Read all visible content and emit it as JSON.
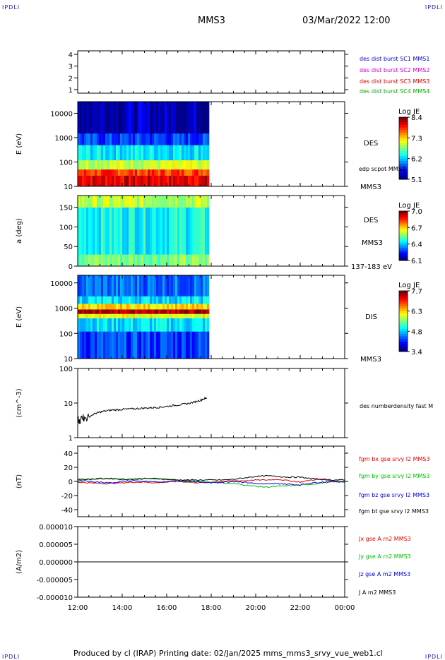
{
  "header": {
    "corner_logo": "IPDLI",
    "spacecraft": "MMS3",
    "datetime": "03/Mar/2022 12:00"
  },
  "footer": {
    "text": "Produced by cl (IRAP)   Printing date: 02/Jan/2025   mms_mms3_srvy_vue_web1.cl"
  },
  "colors": {
    "c1": "#0000cc",
    "c2": "#cc00cc",
    "c3": "#cc0000",
    "c4": "#00aa00",
    "bx": "#dd0000",
    "by": "#00bb00",
    "bz": "#0000dd",
    "bt": "#000000"
  },
  "chart_data": [
    {
      "type": "line",
      "panel": "burst-availability",
      "ylabel": "",
      "yticks": [
        "1",
        "2",
        "3",
        "4"
      ],
      "ylim": [
        0.7,
        4.3
      ],
      "legend": [
        "des dist burst SC1 MMS1",
        "des dist burst SC2 MMS2",
        "des dist burst SC3 MMS3",
        "des dist burst SC4 MMS4"
      ],
      "series": []
    },
    {
      "type": "heatmap",
      "panel": "des-energy",
      "ylabel": "E (eV)",
      "yscale": "log",
      "yticks": [
        "10",
        "100",
        "1000",
        "10000"
      ],
      "ylim": [
        10,
        30000
      ],
      "data_end_time": "17:50",
      "labels": [
        "DES",
        "edp scpot MMS3",
        "MMS3"
      ],
      "colorbar": {
        "title": "Log JE",
        "ticks": [
          "8.4",
          "7.3",
          "6.2",
          "5.1"
        ],
        "range": [
          5.1,
          8.4
        ]
      },
      "bands": [
        {
          "from": 10,
          "to": 28,
          "level": 8.1
        },
        {
          "from": 28,
          "to": 50,
          "level": 7.8
        },
        {
          "from": 50,
          "to": 120,
          "level": 7.0
        },
        {
          "from": 120,
          "to": 500,
          "level": 6.3
        },
        {
          "from": 500,
          "to": 1500,
          "level": 5.7
        },
        {
          "from": 1500,
          "to": 30000,
          "level": 5.3
        }
      ]
    },
    {
      "type": "heatmap",
      "panel": "des-pitch-angle",
      "ylabel": "a (deg)",
      "yticks": [
        "0",
        "50",
        "100",
        "150"
      ],
      "ylim": [
        0,
        180
      ],
      "data_end_time": "17:50",
      "labels": [
        "DES",
        "MMS3",
        "137-183 eV"
      ],
      "colorbar": {
        "title": "Log JE",
        "ticks": [
          "7.0",
          "6.7",
          "6.4",
          "6.1"
        ],
        "range": [
          6.1,
          7.0
        ]
      },
      "bands": [
        {
          "from": 0,
          "to": 30,
          "level": 6.55
        },
        {
          "from": 30,
          "to": 150,
          "level": 6.45
        },
        {
          "from": 150,
          "to": 180,
          "level": 6.6
        }
      ]
    },
    {
      "type": "heatmap",
      "panel": "dis-energy",
      "ylabel": "E (eV)",
      "yscale": "log",
      "yticks": [
        "10",
        "100",
        "1000",
        "10000"
      ],
      "ylim": [
        10,
        20000
      ],
      "data_end_time": "17:50",
      "labels": [
        "DIS",
        "MMS3"
      ],
      "colorbar": {
        "title": "Log JE",
        "ticks": [
          "7.7",
          "6.3",
          "4.8",
          "3.4"
        ],
        "range": [
          3.4,
          7.7
        ]
      },
      "bands": [
        {
          "from": 10,
          "to": 120,
          "level": 4.2
        },
        {
          "from": 120,
          "to": 400,
          "level": 4.9
        },
        {
          "from": 400,
          "to": 600,
          "level": 6.0
        },
        {
          "from": 600,
          "to": 900,
          "level": 7.5
        },
        {
          "from": 900,
          "to": 1500,
          "level": 6.2
        },
        {
          "from": 1500,
          "to": 3000,
          "level": 4.9
        },
        {
          "from": 3000,
          "to": 20000,
          "level": 4.4
        }
      ]
    },
    {
      "type": "line",
      "panel": "density",
      "ylabel": "(cm^-3)",
      "yscale": "log",
      "yticks": [
        "1",
        "10",
        "100"
      ],
      "ylim": [
        1,
        100
      ],
      "legend": [
        "des numberdensity fast M"
      ],
      "series": [
        {
          "name": "des numberdensity fast M",
          "x": [
            12.0,
            12.1,
            12.2,
            12.3,
            12.5,
            12.8,
            13.0,
            13.3,
            13.6,
            13.9,
            14.2,
            14.5,
            14.8,
            15.1,
            15.4,
            15.7,
            16.0,
            16.3,
            16.6,
            16.9,
            17.2,
            17.5,
            17.7,
            17.8
          ],
          "y": [
            3.5,
            2.5,
            4.5,
            3.5,
            4.0,
            5.0,
            5.5,
            6.0,
            6.3,
            6.5,
            6.7,
            6.8,
            7.0,
            7.2,
            7.4,
            7.6,
            8.0,
            8.5,
            9.0,
            9.5,
            10.5,
            12.0,
            13.5,
            14.0
          ]
        }
      ]
    },
    {
      "type": "line",
      "panel": "magnetic-field",
      "ylabel": "(nT)",
      "yticks": [
        "-40",
        "-20",
        "0",
        "20",
        "40"
      ],
      "ylim": [
        -50,
        50
      ],
      "legend": [
        "fgm bx gse srvy l2 MMS3",
        "fgm by gse srvy l2 MMS3",
        "fgm bz gse srvy l2 MMS3",
        "fgm bt gse srvy l2 MMS3"
      ],
      "series": [
        {
          "name": "fgm bx gse srvy l2 MMS3",
          "x": [
            12,
            12.5,
            13,
            13.5,
            14,
            14.5,
            15,
            15.5,
            16,
            16.5,
            17,
            17.5,
            18,
            18.5,
            19,
            19.5,
            20,
            20.5,
            21,
            21.5,
            22,
            22.5,
            23,
            23.5,
            24
          ],
          "y": [
            -1,
            -2,
            -3,
            -3,
            -2,
            -1,
            -1,
            -2,
            -1,
            0,
            -1,
            -2,
            -1,
            0,
            1,
            1,
            2,
            2,
            3,
            1,
            -1,
            2,
            3,
            1,
            0
          ]
        },
        {
          "name": "fgm by gse srvy l2 MMS3",
          "x": [
            12,
            12.5,
            13,
            13.5,
            14,
            14.5,
            15,
            15.5,
            16,
            16.5,
            17,
            17.5,
            18,
            18.5,
            19,
            19.5,
            20,
            20.5,
            21,
            21.5,
            22,
            22.5,
            23,
            23.5,
            24
          ],
          "y": [
            2,
            3,
            4,
            4,
            3,
            3,
            4,
            4,
            3,
            2,
            1,
            0,
            -1,
            -2,
            -3,
            -5,
            -7,
            -8,
            -7,
            -6,
            -5,
            -4,
            -2,
            -1,
            1
          ]
        },
        {
          "name": "fgm bz gse srvy l2 MMS3",
          "x": [
            12,
            12.5,
            13,
            13.5,
            14,
            14.5,
            15,
            15.5,
            16,
            16.5,
            17,
            17.5,
            18,
            18.5,
            19,
            19.5,
            20,
            20.5,
            21,
            21.5,
            22,
            22.5,
            23,
            23.5,
            24
          ],
          "y": [
            1,
            0,
            -1,
            -2,
            0,
            1,
            0,
            -1,
            0,
            1,
            0,
            -1,
            -2,
            -1,
            0,
            -1,
            -3,
            -4,
            -3,
            -4,
            -5,
            -2,
            -1,
            0,
            -1
          ]
        },
        {
          "name": "fgm bt gse srvy l2 MMS3",
          "x": [
            12,
            12.5,
            13,
            13.5,
            14,
            14.5,
            15,
            15.5,
            16,
            16.5,
            17,
            17.5,
            18,
            18.5,
            19,
            19.5,
            20,
            20.5,
            21,
            21.5,
            22,
            22.5,
            23,
            23.5,
            24
          ],
          "y": [
            3,
            3,
            4,
            4,
            3,
            3,
            4,
            4,
            3,
            2,
            2,
            2,
            2,
            2,
            3,
            5,
            7,
            8,
            7,
            6,
            6,
            4,
            3,
            2,
            2
          ]
        }
      ]
    },
    {
      "type": "line",
      "panel": "current-density",
      "ylabel": "(A/m2)",
      "yticks": [
        "-0.000010",
        "-0.000005",
        "0.000000",
        "0.000005",
        "0.000010"
      ],
      "ylim": [
        -1e-05,
        1e-05
      ],
      "legend": [
        "Jx gse A m2 MMS3",
        "Jy gse A m2 MMS3",
        "Jz gse A m2 MMS3",
        "J A m2 MMS3"
      ],
      "series": [
        {
          "name": "J A m2 MMS3",
          "x": [
            12,
            24
          ],
          "y": [
            0,
            0
          ]
        }
      ]
    }
  ],
  "time_axis": {
    "ticks": [
      "12:00",
      "14:00",
      "16:00",
      "18:00",
      "20:00",
      "22:00",
      "00:00"
    ],
    "range_hours": [
      12,
      24
    ]
  }
}
